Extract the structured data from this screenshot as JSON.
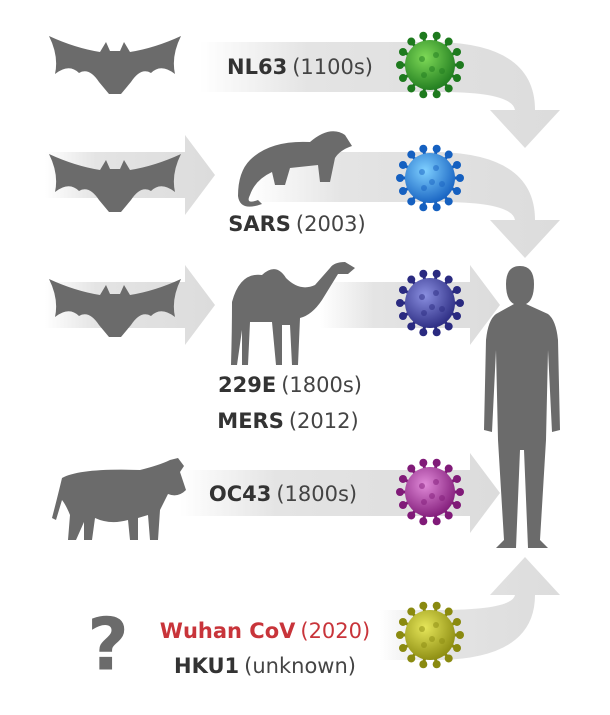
{
  "labels": [
    {
      "name": "NL63",
      "year": "(1100s)"
    },
    {
      "name": "SARS",
      "year": "(2003)"
    },
    {
      "name": "229E",
      "year": "(1800s)"
    },
    {
      "name": "MERS",
      "year": "(2012)"
    },
    {
      "name": "OC43",
      "year": "(1800s)"
    },
    {
      "name": "Wuhan CoV",
      "year": "(2020)"
    },
    {
      "name": "HKU1",
      "year": "(unknown)"
    }
  ],
  "unknown_mark": "?"
}
